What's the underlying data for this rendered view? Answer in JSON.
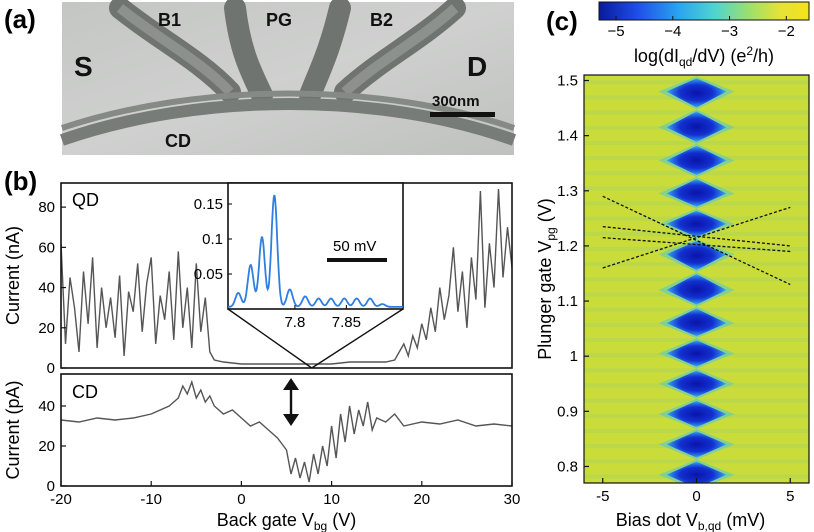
{
  "panel_labels": {
    "a": "(a)",
    "b": "(b)",
    "c": "(c)"
  },
  "panel_a": {
    "labels": {
      "S": "S",
      "D": "D",
      "B1": "B1",
      "PG": "PG",
      "B2": "B2",
      "CD": "CD"
    },
    "scalebar": "300nm"
  },
  "chart_data": [
    {
      "id": "b-top",
      "type": "line",
      "label": "QD",
      "ylabel": "Current (nA)",
      "xlim": [
        -20,
        30
      ],
      "ylim": [
        0,
        92
      ],
      "yticks": [
        0,
        20,
        40,
        60,
        80
      ],
      "series": [
        {
          "color": "#555555",
          "x": [
            -20,
            -19.5,
            -19,
            -18.5,
            -18,
            -17.5,
            -17,
            -16.5,
            -16,
            -15.5,
            -15,
            -14.5,
            -14,
            -13.5,
            -13,
            -12.5,
            -12,
            -11.5,
            -11,
            -10.5,
            -10,
            -9.5,
            -9,
            -8.5,
            -8,
            -7.5,
            -7,
            -6.5,
            -6,
            -5.5,
            -5,
            -4.5,
            -4,
            -3.5,
            -3,
            -2,
            0,
            2,
            4,
            6,
            8,
            10,
            12,
            14,
            16,
            17,
            17.5,
            18,
            18.5,
            19,
            19.5,
            20,
            20.5,
            21,
            21.5,
            22,
            22.5,
            23,
            23.5,
            24,
            24.5,
            25,
            25.5,
            26,
            26.5,
            27,
            27.5,
            28,
            28.5,
            29,
            29.5,
            30
          ],
          "y": [
            62,
            12,
            45,
            30,
            8,
            48,
            22,
            55,
            10,
            40,
            20,
            35,
            15,
            46,
            6,
            38,
            28,
            52,
            18,
            42,
            55,
            12,
            36,
            24,
            48,
            14,
            58,
            20,
            40,
            10,
            52,
            18,
            35,
            8,
            4,
            3,
            2,
            2,
            2,
            2,
            2,
            2,
            3,
            3,
            3,
            4,
            8,
            12,
            6,
            16,
            10,
            22,
            14,
            30,
            18,
            40,
            24,
            36,
            60,
            28,
            48,
            20,
            55,
            34,
            88,
            30,
            62,
            40,
            89,
            45,
            70,
            50
          ]
        }
      ],
      "inset": {
        "xlim": [
          7.735,
          7.905
        ],
        "xticks": [
          7.8,
          7.85
        ],
        "yticks": [
          0.05,
          0.1,
          0.15
        ],
        "ylim": [
          0,
          0.18
        ],
        "scalebar": "50 mV",
        "series": [
          {
            "color": "#2f7fe0",
            "peaks_x": [
              7.745,
              7.757,
              7.768,
              7.78,
              7.795,
              7.81,
              7.823,
              7.835,
              7.848,
              7.86,
              7.873,
              7.885
            ],
            "peaks_y": [
              0.02,
              0.06,
              0.1,
              0.16,
              0.025,
              0.015,
              0.012,
              0.012,
              0.012,
              0.012,
              0.012,
              0.004
            ]
          }
        ]
      }
    },
    {
      "id": "b-bottom",
      "type": "line",
      "label": "CD",
      "ylabel": "Current (pA)",
      "xlabel": "Back gate V",
      "xlabel_sub": "bg",
      "xlabel_unit": "(V)",
      "xlim": [
        -20,
        30
      ],
      "ylim": [
        0,
        56
      ],
      "xticks": [
        -20,
        -10,
        0,
        10,
        20,
        30
      ],
      "yticks": [
        0,
        20,
        40
      ],
      "series": [
        {
          "color": "#555555",
          "x": [
            -20,
            -18,
            -16,
            -14,
            -12,
            -10,
            -9,
            -8,
            -7,
            -6.5,
            -6,
            -5.5,
            -5,
            -4.5,
            -4,
            -3.5,
            -3,
            -2,
            -1,
            0,
            1,
            2,
            3,
            4,
            5,
            5.5,
            6,
            6.5,
            7,
            7.5,
            8,
            8.5,
            9,
            9.5,
            10,
            10.5,
            11,
            11.5,
            12,
            12.5,
            13,
            13.5,
            14,
            14.5,
            15,
            16,
            17,
            18,
            20,
            22,
            24,
            26,
            28,
            30
          ],
          "y": [
            33,
            32,
            34,
            33,
            34,
            36,
            38,
            40,
            44,
            50,
            46,
            52,
            44,
            48,
            42,
            45,
            40,
            36,
            38,
            34,
            30,
            32,
            28,
            24,
            18,
            6,
            14,
            4,
            12,
            2,
            16,
            6,
            20,
            10,
            30,
            14,
            36,
            22,
            40,
            26,
            38,
            30,
            42,
            28,
            34,
            32,
            36,
            30,
            32,
            31,
            33,
            30,
            31,
            30
          ]
        }
      ],
      "arrow": true
    },
    {
      "id": "c",
      "type": "heatmap",
      "xlabel": "Bias dot V",
      "xlabel_sub": "b,qd",
      "xlabel_unit": "(mV)",
      "ylabel": "Plunger gate V",
      "ylabel_sub": "pg",
      "ylabel_unit": "(V)",
      "xlim": [
        -6,
        6
      ],
      "ylim": [
        0.77,
        1.51
      ],
      "xticks": [
        -5,
        0,
        5
      ],
      "yticks": [
        0.8,
        0.9,
        1,
        1.1,
        1.2,
        1.3,
        1.4,
        1.5
      ],
      "colorbar": {
        "label_pre": "log(dI",
        "label_sub": "qd",
        "label_mid": "/dV) (e",
        "label_sup": "2",
        "label_post": "/h)",
        "ticks": [
          -5,
          -4,
          -3,
          -2
        ],
        "range": [
          -5.3,
          -1.6
        ]
      },
      "diamond_centers_vpg": [
        0.785,
        0.84,
        0.895,
        0.95,
        1.005,
        1.06,
        1.12,
        1.185,
        1.24,
        1.295,
        1.355,
        1.415,
        1.48
      ],
      "dashed_lines": [
        {
          "x": [
            -5,
            5
          ],
          "y": [
            1.29,
            1.13
          ]
        },
        {
          "x": [
            -5,
            5
          ],
          "y": [
            1.16,
            1.27
          ]
        },
        {
          "x": [
            -5,
            5
          ],
          "y": [
            1.215,
            1.19
          ]
        },
        {
          "x": [
            -5,
            5
          ],
          "y": [
            1.235,
            1.2
          ]
        }
      ]
    }
  ]
}
